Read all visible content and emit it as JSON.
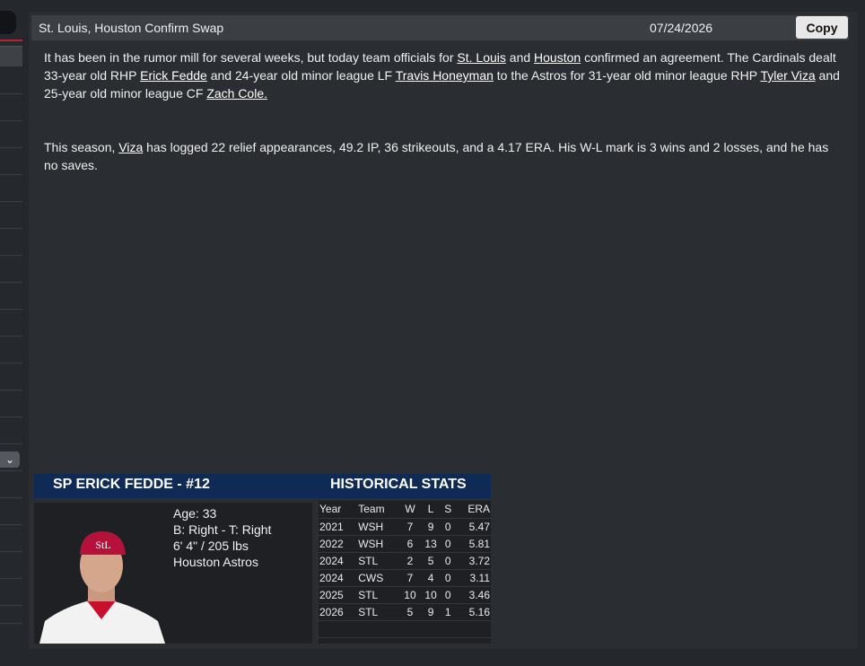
{
  "header": {
    "title": "St. Louis, Houston Confirm Swap",
    "date": "07/24/2026",
    "copy_label": "Copy"
  },
  "article": {
    "p1": [
      {
        "t": "It has been in the rumor mill for several weeks, but today team officials for "
      },
      {
        "t": "St. Louis",
        "link": true
      },
      {
        "t": " and "
      },
      {
        "t": "Houston",
        "link": true
      },
      {
        "t": " confirmed an agreement. The Cardinals dealt 33-year old RHP "
      },
      {
        "t": "Erick Fedde",
        "link": true
      },
      {
        "t": " and 24-year old minor league LF "
      },
      {
        "t": "Travis Honeyman",
        "link": true
      },
      {
        "t": " to the Astros for 31-year old minor league RHP "
      },
      {
        "t": "Tyler Viza",
        "link": true
      },
      {
        "t": " and 25-year old minor league CF "
      },
      {
        "t": "Zach Cole.",
        "link": true
      }
    ],
    "p2": [
      {
        "t": "This season, "
      },
      {
        "t": "Viza",
        "link": true
      },
      {
        "t": " has logged 22 relief appearances, 49.2 IP, 36 strikeouts, and a 4.17 ERA. His W-L mark is 3 wins and 2 losses, and he has no saves."
      }
    ]
  },
  "player": {
    "title": "SP ERICK FEDDE - #12",
    "age": "Age: 33",
    "bats_throws": "B: Right - T: Right",
    "size": "6' 4\"  / 205 lbs",
    "team": "Houston Astros"
  },
  "stats": {
    "title": "HISTORICAL STATS",
    "columns": [
      "Year",
      "Team",
      "W",
      "L",
      "S",
      "ERA"
    ],
    "rows": [
      [
        "2021",
        "WSH",
        "7",
        "9",
        "0",
        "5.47"
      ],
      [
        "2022",
        "WSH",
        "6",
        "13",
        "0",
        "5.81"
      ],
      [
        "2024",
        "STL",
        "2",
        "5",
        "0",
        "3.72"
      ],
      [
        "2024",
        "CWS",
        "7",
        "4",
        "0",
        "3.11"
      ],
      [
        "2025",
        "STL",
        "10",
        "10",
        "0",
        "3.46"
      ],
      [
        "2026",
        "STL",
        "5",
        "9",
        "1",
        "5.16"
      ]
    ]
  },
  "colors": {
    "card_header": "#0f2a55",
    "accent": "#b3262d"
  }
}
